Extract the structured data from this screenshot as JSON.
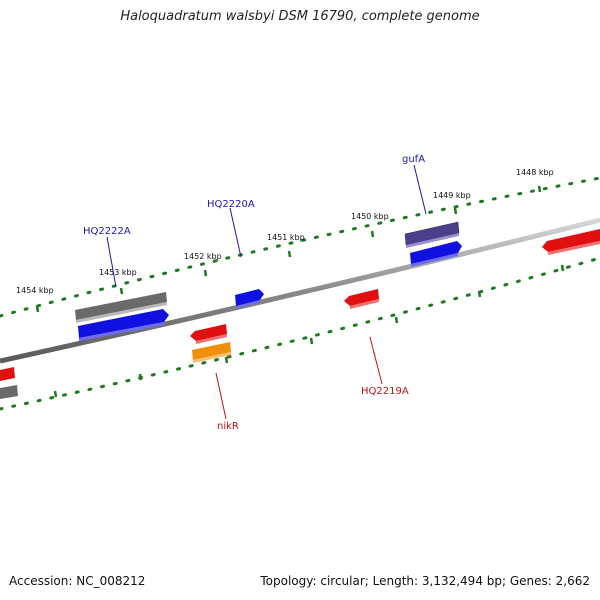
{
  "title": "Haloquadratum walsbyi DSM 16790, complete genome",
  "footer": {
    "accession": "Accession: NC_008212",
    "topology": "Topology: circular; Length: 3,132,494 bp; Genes: 2,662"
  },
  "colors": {
    "background": "#ffffff",
    "backbone": "#8a8a8a",
    "ticks": "#1e7a1e",
    "forward_label": "#1a1aa8",
    "reverse_label": "#c01010",
    "gene_blue": "#1010e0",
    "gene_red": "#e01010",
    "gene_gray": "#6a6a6a",
    "gene_purple": "#4a3f8a",
    "gene_orange": "#f0900a"
  },
  "scale_labels": [
    "1448 kbp",
    "1449 kbp",
    "1450 kbp",
    "1451 kbp",
    "1452 kbp",
    "1453 kbp",
    "1454 kbp"
  ],
  "gene_labels": {
    "forward": [
      "gufA",
      "HQ2220A",
      "HQ2222A"
    ],
    "reverse": [
      "HQ2219A",
      "nikR"
    ]
  }
}
